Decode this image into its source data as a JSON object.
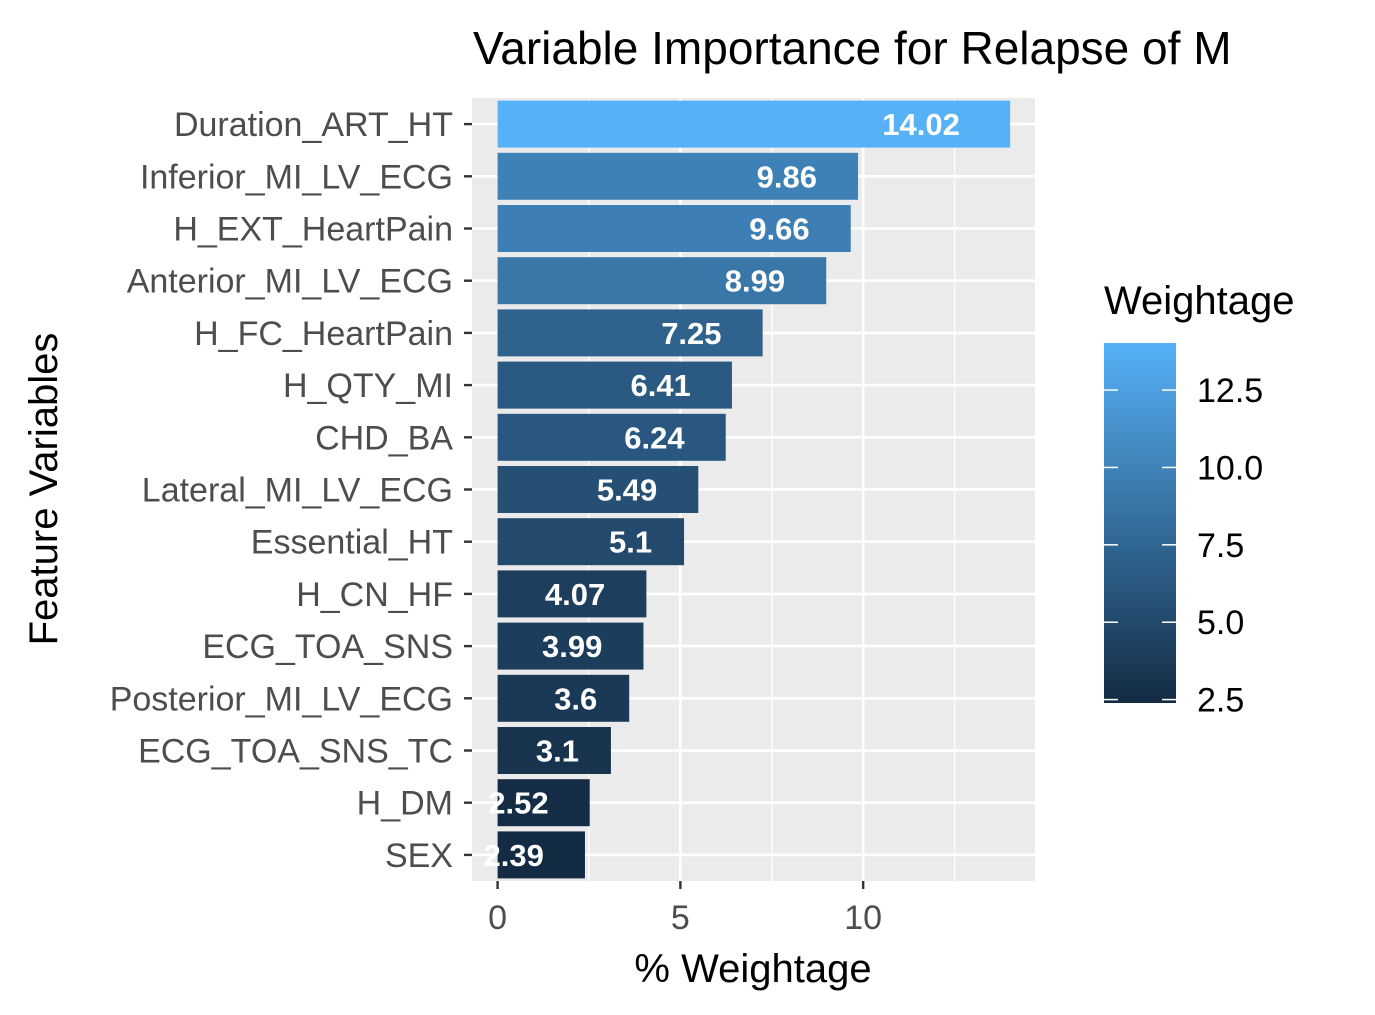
{
  "chart_data": {
    "type": "bar",
    "orientation": "horizontal",
    "title": "Variable Importance for Relapse of M",
    "xlabel": "% Weightage",
    "ylabel": "Feature Variables",
    "xlim": [
      -0.7,
      14.7
    ],
    "x_ticks": [
      "0",
      "5",
      "10"
    ],
    "x_tick_values": [
      0,
      5,
      10
    ],
    "grid": true,
    "categories": [
      "Duration_ART_HT",
      "Inferior_MI_LV_ECG",
      "H_EXT_HeartPain",
      "Anterior_MI_LV_ECG",
      "H_FC_HeartPain",
      "H_QTY_MI",
      "CHD_BA",
      "Lateral_MI_LV_ECG",
      "Essential_HT",
      "H_CN_HF",
      "ECG_TOA_SNS",
      "Posterior_MI_LV_ECG",
      "ECG_TOA_SNS_TC",
      "H_DM",
      "SEX"
    ],
    "values": [
      14.02,
      9.86,
      9.66,
      8.99,
      7.25,
      6.41,
      6.24,
      5.49,
      5.1,
      4.07,
      3.99,
      3.6,
      3.1,
      2.52,
      2.39
    ],
    "data_labels": [
      "14.02",
      "9.86",
      "9.66",
      "8.99",
      "7.25",
      "6.41",
      "6.24",
      "5.49",
      "5.1",
      "4.07",
      "3.99",
      "3.6",
      "3.1",
      "2.52",
      "2.39"
    ],
    "legend": {
      "title": "Weightage",
      "placement": "right",
      "ticks": [
        "12.5",
        "10.0",
        "7.5",
        "5.0",
        "2.5"
      ],
      "tick_values": [
        12.5,
        10.0,
        7.5,
        5.0,
        2.5
      ],
      "range": [
        2.39,
        14.02
      ],
      "color_low": "#132B43",
      "color_high": "#56B1F7"
    },
    "colors": {
      "panel_background": "#EBEBEB",
      "grid": "#FFFFFF",
      "label_text": "#FFFFFF",
      "axis_text": "#4D4D4D"
    }
  }
}
